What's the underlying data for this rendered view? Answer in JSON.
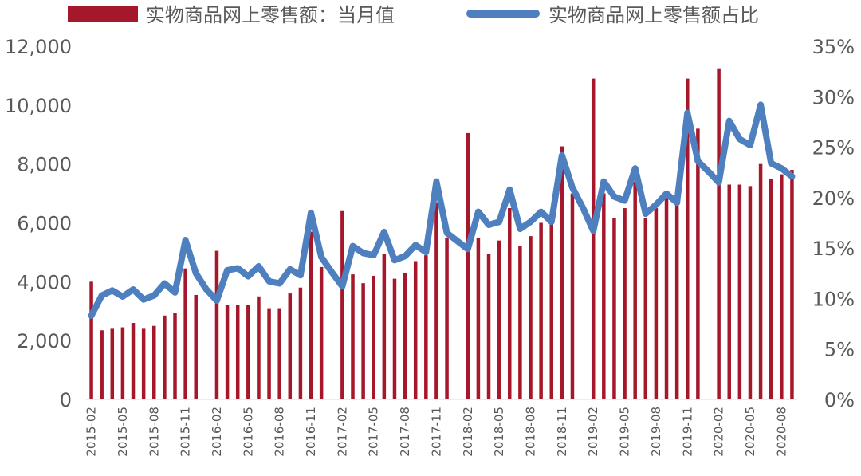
{
  "chart_data": {
    "type": "bar",
    "legend": {
      "placement": "top"
    },
    "x_tick_labels": [
      "2015-02",
      "2015-05",
      "2015-08",
      "2015-11",
      "2016-02",
      "2016-05",
      "2016-08",
      "2016-11",
      "2017-02",
      "2017-05",
      "2017-08",
      "2017-11",
      "2018-02",
      "2018-05",
      "2018-08",
      "2018-11",
      "2019-02",
      "2019-05",
      "2019-08",
      "2019-11",
      "2020-02",
      "2020-05",
      "2020-08"
    ],
    "y_left": {
      "ticks": [
        "0",
        "2,000",
        "4,000",
        "6,000",
        "8,000",
        "10,000",
        "12,000"
      ],
      "min": 0,
      "max": 12000
    },
    "y_right": {
      "ticks": [
        "0%",
        "5%",
        "10%",
        "15%",
        "20%",
        "25%",
        "30%",
        "35%"
      ],
      "min": 0,
      "max": 35
    },
    "categories": [
      "2015-02",
      "2015-03",
      "2015-04",
      "2015-05",
      "2015-06",
      "2015-07",
      "2015-08",
      "2015-09",
      "2015-10",
      "2015-11",
      "2015-12",
      "2016-01",
      "2016-02",
      "2016-03",
      "2016-04",
      "2016-05",
      "2016-06",
      "2016-07",
      "2016-08",
      "2016-09",
      "2016-10",
      "2016-11",
      "2016-12",
      "2017-01",
      "2017-02",
      "2017-03",
      "2017-04",
      "2017-05",
      "2017-06",
      "2017-07",
      "2017-08",
      "2017-09",
      "2017-10",
      "2017-11",
      "2017-12",
      "2018-01",
      "2018-02",
      "2018-03",
      "2018-04",
      "2018-05",
      "2018-06",
      "2018-07",
      "2018-08",
      "2018-09",
      "2018-10",
      "2018-11",
      "2018-12",
      "2019-01",
      "2019-02",
      "2019-03",
      "2019-04",
      "2019-05",
      "2019-06",
      "2019-07",
      "2019-08",
      "2019-09",
      "2019-10",
      "2019-11",
      "2019-12",
      "2020-01",
      "2020-02",
      "2020-03",
      "2020-04",
      "2020-05",
      "2020-06",
      "2020-07",
      "2020-08",
      "2020-09"
    ],
    "series": [
      {
        "name": "实物商品网上零售额：当月值",
        "type": "bar",
        "axis": "left",
        "color": "#A5172A",
        "values": [
          4000,
          2350,
          2400,
          2450,
          2600,
          2400,
          2500,
          2850,
          2950,
          4450,
          3550,
          null,
          5050,
          3200,
          3200,
          3200,
          3500,
          3100,
          3100,
          3600,
          3800,
          5700,
          4500,
          null,
          6400,
          4250,
          3950,
          4200,
          4950,
          4100,
          4300,
          4700,
          4900,
          6700,
          5500,
          null,
          9050,
          5500,
          4950,
          5400,
          6500,
          5200,
          5550,
          6000,
          6350,
          8600,
          7000,
          null,
          10900,
          7000,
          6150,
          6500,
          7400,
          6150,
          6500,
          6850,
          6850,
          10900,
          9200,
          null,
          11250,
          7300,
          7300,
          7250,
          8000,
          7500,
          7650,
          7800
        ]
      },
      {
        "name": "实物商品网上零售额占比",
        "type": "line",
        "axis": "right",
        "color": "#4E7FBF",
        "values": [
          8.3,
          10.3,
          10.8,
          10.2,
          10.9,
          9.9,
          10.3,
          11.5,
          10.6,
          15.8,
          12.5,
          10.9,
          9.8,
          12.8,
          13.0,
          12.2,
          13.2,
          11.7,
          11.5,
          12.9,
          12.3,
          18.5,
          14.1,
          12.6,
          11.2,
          15.2,
          14.5,
          14.3,
          16.6,
          13.8,
          14.2,
          15.3,
          14.6,
          21.6,
          16.5,
          15.7,
          14.9,
          18.6,
          17.3,
          17.6,
          20.8,
          16.9,
          17.6,
          18.6,
          17.6,
          24.2,
          21.0,
          19.0,
          16.7,
          21.6,
          20.1,
          19.7,
          22.9,
          18.4,
          19.3,
          20.4,
          19.5,
          28.4,
          23.6,
          22.6,
          21.5,
          27.6,
          25.8,
          25.2,
          29.2,
          23.4,
          22.9,
          22.1
        ]
      }
    ]
  }
}
